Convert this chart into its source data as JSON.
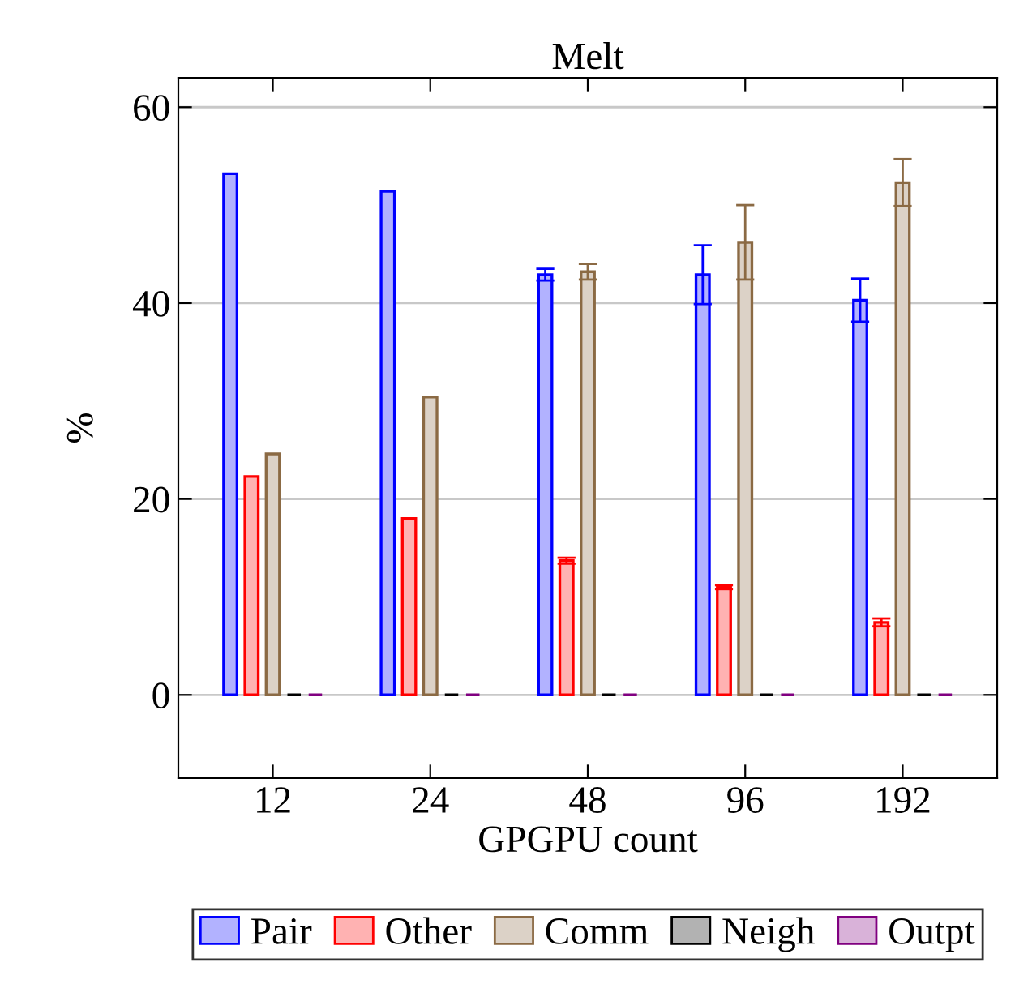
{
  "chart_data": {
    "type": "bar",
    "title": "Melt",
    "xlabel": "GPGPU count",
    "ylabel": "%",
    "categories": [
      "12",
      "24",
      "48",
      "96",
      "192"
    ],
    "series": [
      {
        "name": "Pair",
        "color": "#0000ff",
        "values": [
          53.2,
          51.4,
          42.9,
          42.9,
          40.3
        ],
        "errors": [
          null,
          null,
          0.6,
          3.0,
          2.2
        ]
      },
      {
        "name": "Other",
        "color": "#ff0000",
        "values": [
          22.3,
          18.0,
          13.7,
          11.0,
          7.4
        ],
        "errors": [
          null,
          null,
          0.3,
          0.2,
          0.4
        ]
      },
      {
        "name": "Comm",
        "color": "#8b6a44",
        "values": [
          24.6,
          30.4,
          43.2,
          46.2,
          52.3
        ],
        "errors": [
          null,
          null,
          0.8,
          3.8,
          2.4
        ]
      },
      {
        "name": "Neigh",
        "color": "#000000",
        "values": [
          0,
          0,
          0,
          0,
          0
        ]
      },
      {
        "name": "Outpt",
        "color": "#800080",
        "values": [
          0,
          0,
          0,
          0,
          0
        ]
      }
    ],
    "ylim": [
      -8.5,
      63
    ],
    "yticks": [
      0,
      20,
      40,
      60
    ],
    "grid": "y",
    "legend": "bottom"
  }
}
